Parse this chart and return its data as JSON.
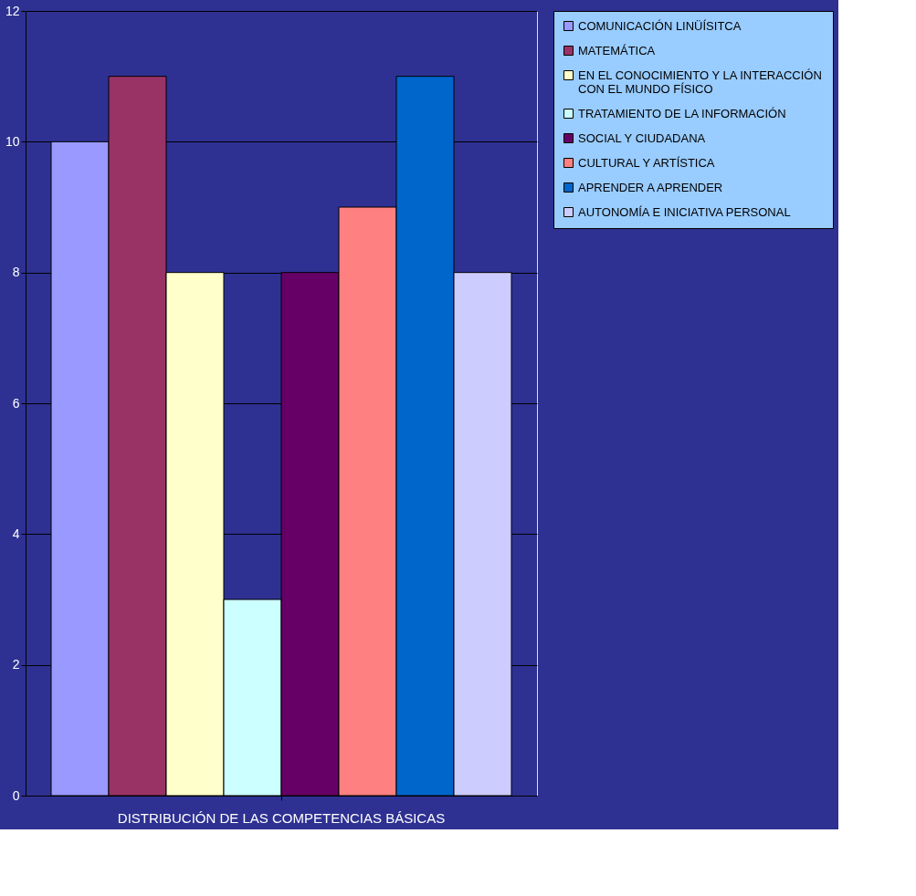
{
  "chart_data": {
    "type": "bar",
    "categories": [
      "DISTRIBUCIÓN DE LAS COMPETENCIAS BÁSICAS"
    ],
    "series": [
      {
        "name": "COMUNICACIÓN LINÜÍSITCA",
        "color": "#9999ff",
        "values": [
          10
        ]
      },
      {
        "name": "MATEMÁTICA",
        "color": "#993366",
        "values": [
          11
        ]
      },
      {
        "name": "EN EL CONOCIMIENTO Y LA INTERACCIÓN CON EL MUNDO FÍSICO",
        "color": "#ffffcc",
        "values": [
          8
        ]
      },
      {
        "name": "TRATAMIENTO DE LA INFORMACIÓN",
        "color": "#ccffff",
        "values": [
          3
        ]
      },
      {
        "name": "SOCIAL Y CIUDADANA",
        "color": "#660066",
        "values": [
          8
        ]
      },
      {
        "name": "CULTURAL Y ARTÍSTICA",
        "color": "#ff8080",
        "values": [
          9
        ]
      },
      {
        "name": "APRENDER A APRENDER",
        "color": "#0066cc",
        "values": [
          11
        ]
      },
      {
        "name": "AUTONOMÍA E INICIATIVA PERSONAL",
        "color": "#ccccff",
        "values": [
          8
        ]
      }
    ],
    "ylim": [
      0,
      12
    ],
    "yticks": [
      0,
      2,
      4,
      6,
      8,
      10,
      12
    ],
    "grid": "y",
    "legend": "right"
  }
}
